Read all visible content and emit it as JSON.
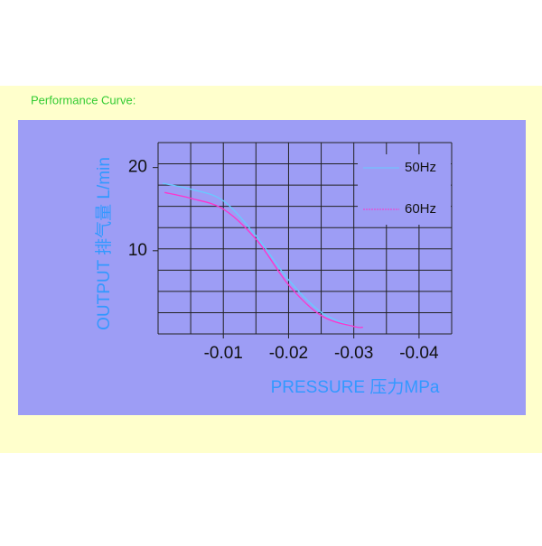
{
  "chart_data": {
    "type": "line",
    "heading": "Performance Curve:",
    "x_label": "PRESSURE 压力MPa",
    "y_label": "OUTPUT 排气量 L/min",
    "xlim": [
      0,
      -0.045
    ],
    "ylim": [
      0,
      23
    ],
    "xticks": [
      -0.01,
      -0.02,
      -0.03,
      -0.04
    ],
    "yticks": [
      10,
      20
    ],
    "grid": true,
    "legend": "upper right",
    "series": [
      {
        "name": "50Hz",
        "color": "#66ccff",
        "x": [
          -0.0007,
          -0.005,
          -0.01,
          -0.0151,
          -0.02,
          -0.025,
          -0.03,
          -0.031
        ],
        "values": [
          18.1,
          17.4,
          16,
          11.7,
          6.5,
          2.6,
          0.9,
          0.8
        ]
      },
      {
        "name": "60Hz",
        "color": "#ff33cc",
        "x": [
          -0.001,
          -0.005,
          -0.01,
          -0.0151,
          -0.02,
          -0.025,
          -0.03,
          -0.0314
        ],
        "values": [
          17.0,
          16.3,
          15,
          11.3,
          5.9,
          2.2,
          0.9,
          0.8
        ]
      }
    ]
  }
}
